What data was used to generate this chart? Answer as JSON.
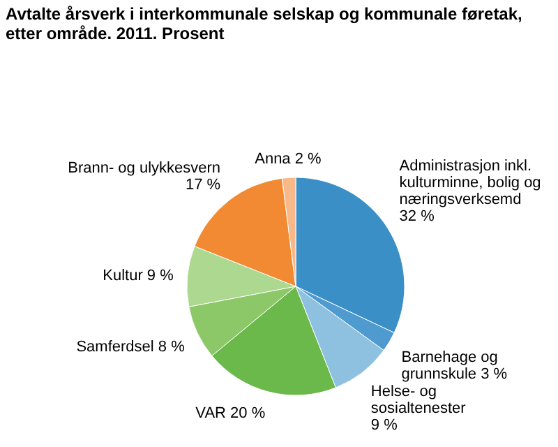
{
  "chart_data": {
    "type": "pie",
    "title": "Avtalte årsverk i interkommunale selskap og kommunale føretak, etter område. 2011. Prosent",
    "categories": [
      "Administrasjon inkl. kulturminne, bolig og næringsverksemd",
      "Barnehage og grunnskule",
      "Helse- og sosialtenester",
      "VAR",
      "Samferdsel",
      "Kultur",
      "Brann- og ulykkesvern",
      "Anna"
    ],
    "values": [
      32,
      3,
      9,
      20,
      8,
      9,
      17,
      2
    ],
    "value_labels": [
      "32 %",
      "3 %",
      "9 %",
      "20 %",
      "8 %",
      "9 %",
      "17 %",
      "2 %"
    ],
    "colors": [
      "#3a8fc7",
      "#4f9bd0",
      "#8ec1e0",
      "#6ab94a",
      "#8cc868",
      "#acd88f",
      "#f28a33",
      "#f7b98a"
    ]
  }
}
